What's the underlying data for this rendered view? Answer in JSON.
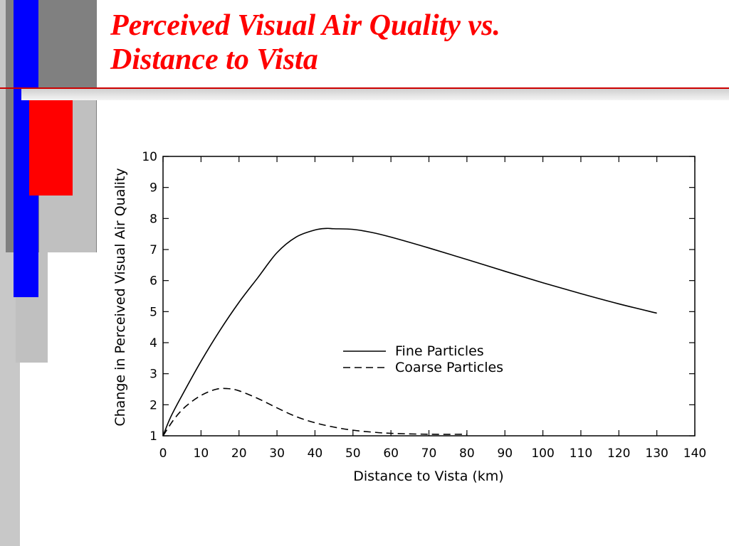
{
  "slide": {
    "title_line1": "Perceived Visual Air Quality vs.",
    "title_line2": "Distance to Vista",
    "accent_colors": {
      "title": "#ff0000",
      "blue_bar": "#0000ff",
      "red_block": "#ff0000",
      "gray_dark": "#808080",
      "gray_light": "#c0c0c0",
      "rule_line": "#cc0000"
    }
  },
  "chart_data": {
    "type": "line",
    "title": "",
    "xlabel": "Distance to Vista (km)",
    "ylabel": "Change in Perceived Visual Air Quality",
    "xlim": [
      0,
      140
    ],
    "ylim": [
      1,
      10
    ],
    "xticks": [
      0,
      10,
      20,
      30,
      40,
      50,
      60,
      70,
      80,
      90,
      100,
      110,
      120,
      130,
      140
    ],
    "yticks": [
      1,
      2,
      3,
      4,
      5,
      6,
      7,
      8,
      9,
      10
    ],
    "grid": false,
    "legend_position": "center-right",
    "series": [
      {
        "name": "Fine Particles",
        "style": "solid",
        "x": [
          0,
          2,
          5,
          10,
          15,
          20,
          25,
          30,
          35,
          40,
          43,
          45,
          50,
          55,
          60,
          70,
          80,
          90,
          100,
          110,
          120,
          130
        ],
        "y": [
          1.0,
          1.6,
          2.3,
          3.4,
          4.4,
          5.3,
          6.1,
          6.9,
          7.4,
          7.63,
          7.68,
          7.67,
          7.65,
          7.55,
          7.4,
          7.05,
          6.68,
          6.3,
          5.93,
          5.58,
          5.25,
          4.95
        ]
      },
      {
        "name": "Coarse Particles",
        "style": "dashed",
        "x": [
          0,
          3,
          6,
          10,
          14,
          17,
          20,
          25,
          30,
          35,
          40,
          45,
          50,
          55,
          60,
          70,
          80
        ],
        "y": [
          1.0,
          1.55,
          1.95,
          2.3,
          2.5,
          2.52,
          2.45,
          2.2,
          1.9,
          1.62,
          1.42,
          1.28,
          1.18,
          1.12,
          1.08,
          1.05,
          1.05
        ]
      }
    ]
  }
}
